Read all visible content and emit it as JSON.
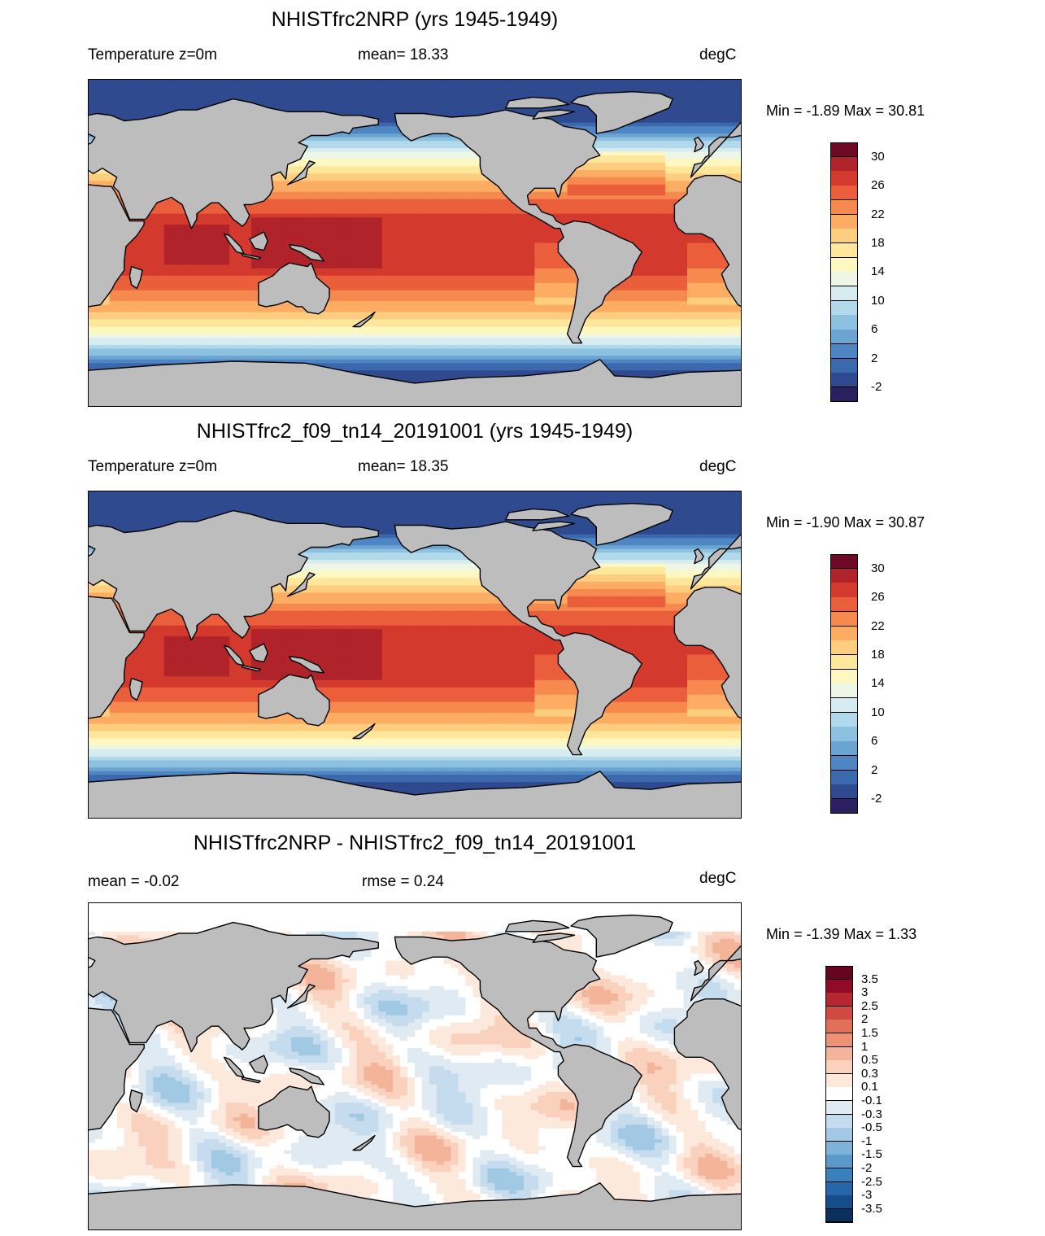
{
  "panels": [
    {
      "title": "NHISTfrc2NRP (yrs 1945-1949)",
      "sub_left": "Temperature z=0m",
      "sub_mid": "mean=  18.33",
      "sub_right": "degC",
      "minmax": "Min =  -1.89 Max =  30.81",
      "colorbar": {
        "colors": [
          "#2b1f5f",
          "#2f4a8f",
          "#3c68ad",
          "#4d86c2",
          "#6ba3d1",
          "#8cc1df",
          "#b2d9ea",
          "#d6ecf1",
          "#eef7e6",
          "#fdf7c0",
          "#fee79b",
          "#fdcd80",
          "#fcad63",
          "#f6894e",
          "#ea5e3b",
          "#d33a2d",
          "#b0232a",
          "#6e0a25"
        ],
        "labels": [
          "30",
          "26",
          "22",
          "18",
          "14",
          "10",
          "6",
          "2",
          "-2"
        ]
      },
      "map_kind": "temperature"
    },
    {
      "title": "NHISTfrc2_f09_tn14_20191001 (yrs 1945-1949)",
      "sub_left": "Temperature z=0m",
      "sub_mid": "mean=  18.35",
      "sub_right": "degC",
      "minmax": "Min =  -1.90 Max =  30.87",
      "colorbar": {
        "colors": [
          "#2b1f5f",
          "#2f4a8f",
          "#3c68ad",
          "#4d86c2",
          "#6ba3d1",
          "#8cc1df",
          "#b2d9ea",
          "#d6ecf1",
          "#eef7e6",
          "#fdf7c0",
          "#fee79b",
          "#fdcd80",
          "#fcad63",
          "#f6894e",
          "#ea5e3b",
          "#d33a2d",
          "#b0232a",
          "#6e0a25"
        ],
        "labels": [
          "30",
          "26",
          "22",
          "18",
          "14",
          "10",
          "6",
          "2",
          "-2"
        ]
      },
      "map_kind": "temperature"
    },
    {
      "title": "NHISTfrc2NRP - NHISTfrc2_f09_tn14_20191001",
      "sub_left": "mean =  -0.02",
      "sub_mid": "rmse =   0.24",
      "sub_right": "degC",
      "minmax": "Min =  -1.39 Max =   1.33",
      "colorbar": {
        "colors": [
          "#0b2f5e",
          "#174c8a",
          "#2567a8",
          "#3a80bc",
          "#5a9acb",
          "#7eb3d9",
          "#a2c9e3",
          "#c4dced",
          "#dfeaf3",
          "#ffffff",
          "#fde8dc",
          "#f9d1bd",
          "#f4b49a",
          "#ec9277",
          "#e07058",
          "#cf4a40",
          "#b52832",
          "#8f0b26",
          "#650520"
        ],
        "labels": [
          "3.5",
          "3",
          "2.5",
          "2",
          "1.5",
          "1",
          "0.5",
          "0.3",
          "0.1",
          "-0.1",
          "-0.3",
          "-0.5",
          "-1",
          "-1.5",
          "-2",
          "-2.5",
          "-3",
          "-3.5"
        ]
      },
      "map_kind": "difference"
    }
  ]
}
